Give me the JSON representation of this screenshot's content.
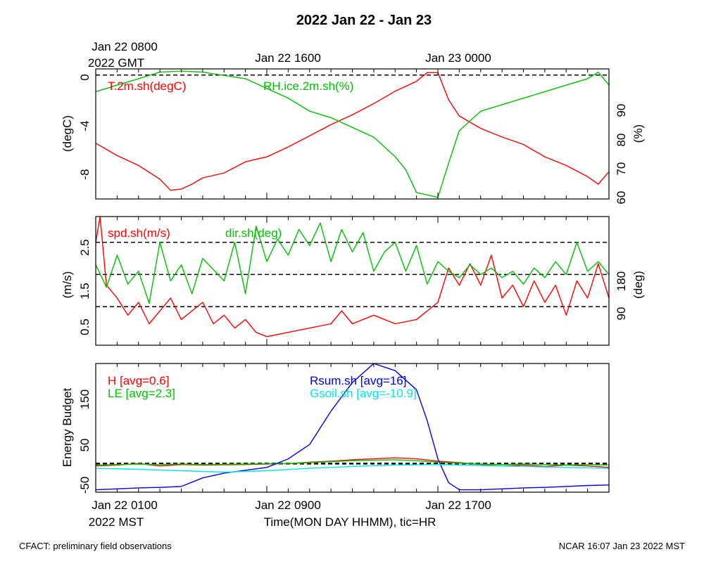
{
  "title": "2022 Jan 22 - Jan 23",
  "footer_left": "CFACT: preliminary field observations",
  "footer_right": "NCAR 16:07 Jan 23 2022 MST",
  "colors": {
    "red": "#ff0000",
    "green": "#00c000",
    "blue": "#0000e0",
    "cyan": "#00e5ee"
  },
  "chart_data": [
    {
      "type": "line",
      "top_axis": {
        "gmt_labels": [
          "Jan 22 0800",
          "Jan 22 1600",
          "Jan 23 0000"
        ],
        "gmt_year": "2022 GMT"
      },
      "x_hours_mst": [
        1,
        25
      ],
      "left": {
        "ylabel": "(degC)",
        "ticks": [
          "0",
          "-4",
          "-8"
        ],
        "ylim": [
          -10,
          0.5
        ]
      },
      "right": {
        "ylabel": "(%)",
        "ticks": [
          "90",
          "80",
          "70",
          "60"
        ],
        "ylim": [
          59,
          99
        ]
      },
      "reference_lines": [
        0
      ],
      "series": [
        {
          "name": "T.2m.sh(degC)",
          "axis": "left",
          "color": "red",
          "points": [
            [
              1,
              -5.5
            ],
            [
              1.5,
              -6
            ],
            [
              2,
              -6.5
            ],
            [
              3,
              -7.3
            ],
            [
              4,
              -8.4
            ],
            [
              4.5,
              -9.3
            ],
            [
              5,
              -9.2
            ],
            [
              5.5,
              -8.8
            ],
            [
              6,
              -8.3
            ],
            [
              7,
              -7.9
            ],
            [
              8,
              -7
            ],
            [
              9,
              -6.6
            ],
            [
              10,
              -5.8
            ],
            [
              11,
              -4.9
            ],
            [
              12,
              -4
            ],
            [
              13,
              -3.2
            ],
            [
              14,
              -2.3
            ],
            [
              15,
              -1.3
            ],
            [
              16,
              -0.5
            ],
            [
              16.5,
              0.2
            ],
            [
              17,
              0.2
            ],
            [
              17.5,
              -2
            ],
            [
              18,
              -3.3
            ],
            [
              19,
              -4.3
            ],
            [
              20,
              -5
            ],
            [
              21,
              -5.6
            ],
            [
              22,
              -6.6
            ],
            [
              23,
              -7.3
            ],
            [
              24,
              -8.2
            ],
            [
              24.5,
              -8.8
            ],
            [
              25,
              -7.8
            ]
          ]
        },
        {
          "name": "RH.ice.2m.sh(%)",
          "axis": "right",
          "color": "green",
          "points": [
            [
              1,
              92
            ],
            [
              2,
              94
            ],
            [
              3,
              96
            ],
            [
              4,
              98
            ],
            [
              5,
              98.3
            ],
            [
              6,
              98
            ],
            [
              7,
              97
            ],
            [
              8,
              96
            ],
            [
              9,
              93
            ],
            [
              10,
              90
            ],
            [
              11,
              86
            ],
            [
              12,
              84
            ],
            [
              13,
              81
            ],
            [
              14,
              78
            ],
            [
              15,
              72
            ],
            [
              15.5,
              68
            ],
            [
              16,
              61
            ],
            [
              17,
              59.5
            ],
            [
              17.5,
              70
            ],
            [
              18,
              80
            ],
            [
              19,
              86
            ],
            [
              20,
              88
            ],
            [
              21,
              90
            ],
            [
              22,
              92
            ],
            [
              23,
              94
            ],
            [
              24,
              96
            ],
            [
              24.5,
              98
            ],
            [
              25,
              94
            ]
          ]
        }
      ]
    },
    {
      "type": "line",
      "x_hours_mst": [
        1,
        25
      ],
      "left": {
        "ylabel": "(m/s)",
        "ticks": [
          "2.5",
          "1.5",
          "0.5"
        ],
        "ylim": [
          0.1,
          3.1
        ]
      },
      "right": {
        "ylabel": "(deg)",
        "ticks": [
          "180",
          "90"
        ],
        "ylim": [
          -60,
          340
        ]
      },
      "reference_lines": [
        2.5,
        1.75,
        1
      ],
      "series": [
        {
          "name": "spd.sh(m/s)",
          "axis": "left",
          "color": "red",
          "points": [
            [
              1,
              2.5
            ],
            [
              1.2,
              3.1
            ],
            [
              1.5,
              1.5
            ],
            [
              2,
              1.2
            ],
            [
              2.5,
              0.8
            ],
            [
              3,
              1.1
            ],
            [
              3.5,
              0.6
            ],
            [
              4,
              0.9
            ],
            [
              4.5,
              1.2
            ],
            [
              5,
              0.7
            ],
            [
              6,
              1.1
            ],
            [
              6.5,
              0.6
            ],
            [
              7,
              0.8
            ],
            [
              7.5,
              0.5
            ],
            [
              8,
              0.7
            ],
            [
              8.5,
              0.4
            ],
            [
              9,
              0.3
            ],
            [
              10,
              0.4
            ],
            [
              11,
              0.5
            ],
            [
              12,
              0.6
            ],
            [
              12.5,
              0.9
            ],
            [
              13,
              0.6
            ],
            [
              14,
              0.8
            ],
            [
              15,
              0.6
            ],
            [
              16,
              0.7
            ],
            [
              16.5,
              0.9
            ],
            [
              17,
              1.1
            ],
            [
              17.5,
              1.9
            ],
            [
              18,
              1.5
            ],
            [
              18.5,
              2
            ],
            [
              19,
              1.5
            ],
            [
              19.5,
              2.2
            ],
            [
              20,
              1.2
            ],
            [
              20.5,
              1.5
            ],
            [
              21,
              1
            ],
            [
              21.5,
              1.6
            ],
            [
              22,
              1.1
            ],
            [
              22.5,
              1.5
            ],
            [
              23,
              0.8
            ],
            [
              23.5,
              1.6
            ],
            [
              24,
              1.2
            ],
            [
              24.5,
              2
            ],
            [
              25,
              1.2
            ]
          ]
        },
        {
          "name": "dir.sh(deg)",
          "axis": "right",
          "color": "green",
          "points": [
            [
              1,
              190
            ],
            [
              1.5,
              120
            ],
            [
              2,
              220
            ],
            [
              2.5,
              130
            ],
            [
              3,
              170
            ],
            [
              3.5,
              70
            ],
            [
              4,
              260
            ],
            [
              4.5,
              140
            ],
            [
              5,
              190
            ],
            [
              5.5,
              100
            ],
            [
              6,
              210
            ],
            [
              7,
              140
            ],
            [
              7.5,
              260
            ],
            [
              8,
              100
            ],
            [
              8.5,
              310
            ],
            [
              9,
              200
            ],
            [
              9.5,
              270
            ],
            [
              10,
              220
            ],
            [
              10.5,
              300
            ],
            [
              11,
              250
            ],
            [
              11.5,
              320
            ],
            [
              12,
              200
            ],
            [
              12.5,
              300
            ],
            [
              13,
              230
            ],
            [
              13.5,
              290
            ],
            [
              14,
              170
            ],
            [
              14.5,
              230
            ],
            [
              15,
              260
            ],
            [
              15.5,
              170
            ],
            [
              16,
              250
            ],
            [
              16.5,
              130
            ],
            [
              17,
              200
            ],
            [
              17.5,
              170
            ],
            [
              18,
              150
            ],
            [
              18.5,
              190
            ],
            [
              19,
              160
            ],
            [
              19.5,
              180
            ],
            [
              20,
              150
            ],
            [
              20.5,
              170
            ],
            [
              21,
              130
            ],
            [
              21.5,
              180
            ],
            [
              22,
              150
            ],
            [
              22.5,
              200
            ],
            [
              23,
              160
            ],
            [
              23.5,
              260
            ],
            [
              24,
              170
            ],
            [
              24.5,
              200
            ],
            [
              25,
              160
            ]
          ]
        }
      ]
    },
    {
      "type": "line",
      "bottom_axis": {
        "tick_labels": [
          "Jan 22 0100",
          "Jan 22 0900",
          "Jan 22 1700"
        ],
        "year_label": "2022 MST",
        "xlabel": "Time(MON DAY HHMM), tic=HR"
      },
      "x_hours_mst": [
        1,
        25
      ],
      "left": {
        "ylabel": "Energy Budget",
        "ticks": [
          "150",
          "50",
          "-50"
        ],
        "ylim": [
          -60,
          210
        ]
      },
      "reference_lines": [
        0
      ],
      "series": [
        {
          "name": "H [avg=0.6]",
          "color": "red",
          "points": [
            [
              1,
              -5
            ],
            [
              2,
              -3
            ],
            [
              3,
              0
            ],
            [
              4,
              -5
            ],
            [
              5,
              -2
            ],
            [
              6,
              -3
            ],
            [
              8,
              -2
            ],
            [
              10,
              0
            ],
            [
              11,
              3
            ],
            [
              12,
              5
            ],
            [
              13,
              8
            ],
            [
              14,
              10
            ],
            [
              15,
              12
            ],
            [
              16,
              10
            ],
            [
              17,
              5
            ],
            [
              18,
              2
            ],
            [
              19,
              -2
            ],
            [
              20,
              -5
            ],
            [
              21,
              -3
            ],
            [
              22,
              -6
            ],
            [
              23,
              -3
            ],
            [
              24,
              -5
            ],
            [
              25,
              -8
            ]
          ]
        },
        {
          "name": "LE [avg=2.3]",
          "color": "green",
          "points": [
            [
              1,
              -3
            ],
            [
              2,
              -2
            ],
            [
              3,
              -1
            ],
            [
              4,
              -2
            ],
            [
              5,
              -1
            ],
            [
              6,
              -2
            ],
            [
              8,
              -1
            ],
            [
              10,
              0
            ],
            [
              11,
              2
            ],
            [
              12,
              4
            ],
            [
              13,
              6
            ],
            [
              14,
              7
            ],
            [
              15,
              8
            ],
            [
              16,
              6
            ],
            [
              17,
              3
            ],
            [
              18,
              1
            ],
            [
              19,
              -1
            ],
            [
              20,
              -2
            ],
            [
              21,
              -1
            ],
            [
              22,
              -2
            ],
            [
              23,
              -3
            ],
            [
              24,
              -2
            ],
            [
              25,
              -3
            ]
          ]
        },
        {
          "name": "Rsum.sh [avg=16]",
          "color": "blue",
          "points": [
            [
              1,
              -55
            ],
            [
              2,
              -53
            ],
            [
              3,
              -51
            ],
            [
              4,
              -50
            ],
            [
              5,
              -48
            ],
            [
              6,
              -30
            ],
            [
              7,
              -20
            ],
            [
              8,
              -14
            ],
            [
              9,
              -8
            ],
            [
              10,
              10
            ],
            [
              11,
              40
            ],
            [
              12,
              110
            ],
            [
              13,
              170
            ],
            [
              14,
              210
            ],
            [
              15,
              195
            ],
            [
              16,
              155
            ],
            [
              16.5,
              90
            ],
            [
              17,
              10
            ],
            [
              17.5,
              -40
            ],
            [
              18,
              -55
            ],
            [
              19,
              -55
            ],
            [
              20,
              -53
            ],
            [
              21,
              -51
            ],
            [
              22,
              -50
            ],
            [
              23,
              -48
            ],
            [
              24,
              -46
            ],
            [
              25,
              -45
            ]
          ]
        },
        {
          "name": "Gsoil.sh [avg=-10.9]",
          "color": "cyan",
          "points": [
            [
              1,
              -10
            ],
            [
              3,
              -12
            ],
            [
              5,
              -15
            ],
            [
              7,
              -18
            ],
            [
              9,
              -15
            ],
            [
              11,
              -10
            ],
            [
              13,
              -6
            ],
            [
              15,
              -3
            ],
            [
              17,
              -2
            ],
            [
              19,
              -4
            ],
            [
              21,
              -6
            ],
            [
              23,
              -8
            ],
            [
              25,
              -10
            ]
          ]
        }
      ]
    }
  ]
}
